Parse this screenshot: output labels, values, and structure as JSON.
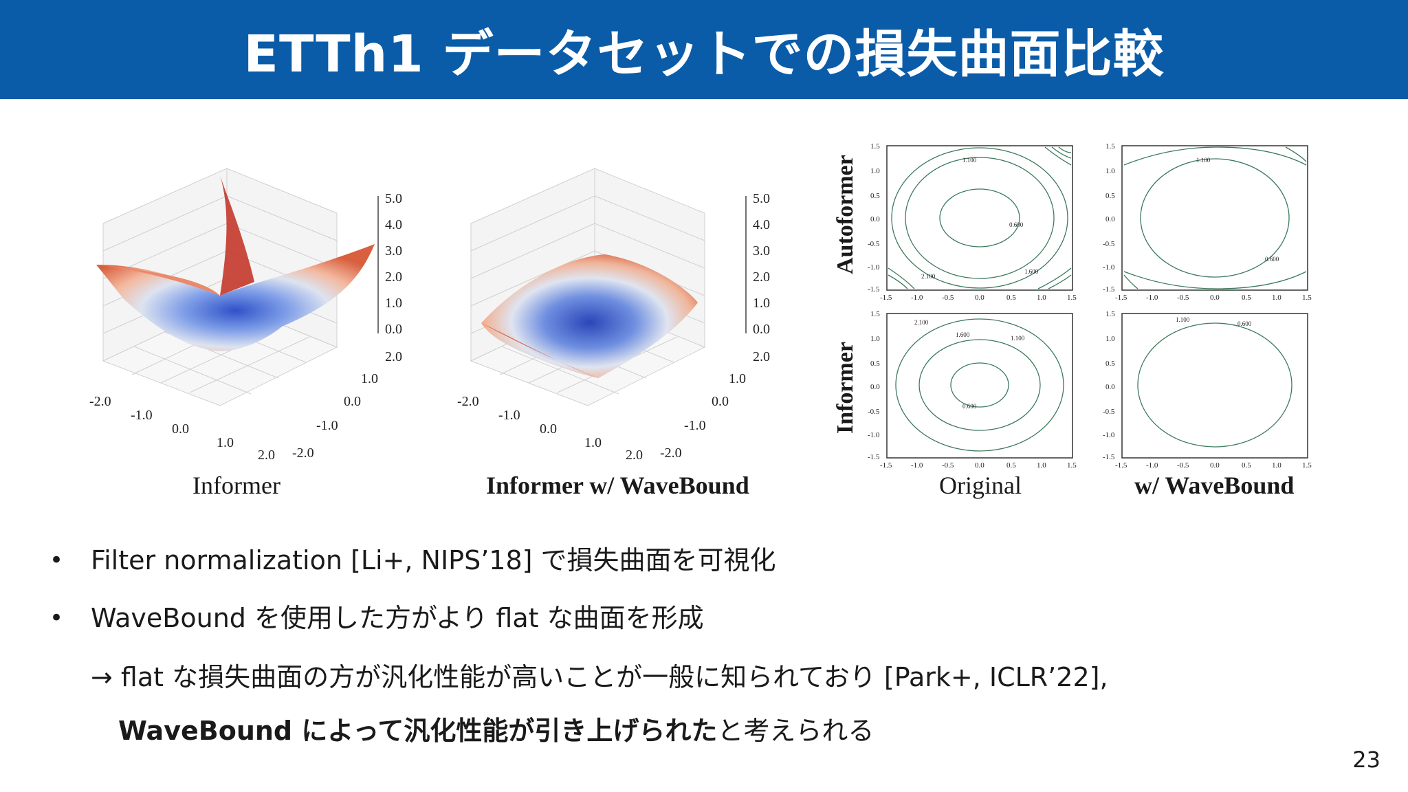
{
  "slide": {
    "title": "ETTh1 データセットでの損失曲面比較",
    "page_number": "23"
  },
  "figures": {
    "surface_left_caption": "Informer",
    "surface_mid_caption": "Informer w/ WaveBound",
    "contour_col_left": "Original",
    "contour_col_right": "w/ WaveBound",
    "contour_row_top": "Autoformer",
    "contour_row_bottom": "Informer",
    "z_ticks": [
      "5.0",
      "4.0",
      "3.0",
      "2.0",
      "1.0",
      "0.0"
    ],
    "x_ticks": [
      "-2.0",
      "-1.0",
      "0.0",
      "1.0",
      "2.0"
    ],
    "y_ticks": [
      "-2.0",
      "-1.0",
      "0.0",
      "1.0",
      "2.0"
    ],
    "contour_ticks": [
      "-1.5",
      "-1.0",
      "-0.5",
      "0.0",
      "0.5",
      "1.0",
      "1.5"
    ],
    "contour_labels": [
      "1.100",
      "0.600",
      "1.600",
      "2.100"
    ],
    "colors": {
      "title_bar": "#0a5ca8",
      "surface_high": "#b2182b",
      "surface_low": "#2f52c8",
      "contour_line": "#3d7a5c"
    }
  },
  "bullets": {
    "b1": "Filter normalization [Li+, NIPS’18] で損失曲面を可視化",
    "b2": "WaveBound を使用した方がより flat な曲面を形成",
    "b2_sub1": "→ flat な損失曲面の方が汎化性能が高いことが一般に知られており [Park+, ICLR’22],",
    "b2_sub2_bold": "WaveBound によって汎化性能が引き上げられた",
    "b2_sub2_rest": "と考えられる",
    "bullet_char": "•"
  }
}
